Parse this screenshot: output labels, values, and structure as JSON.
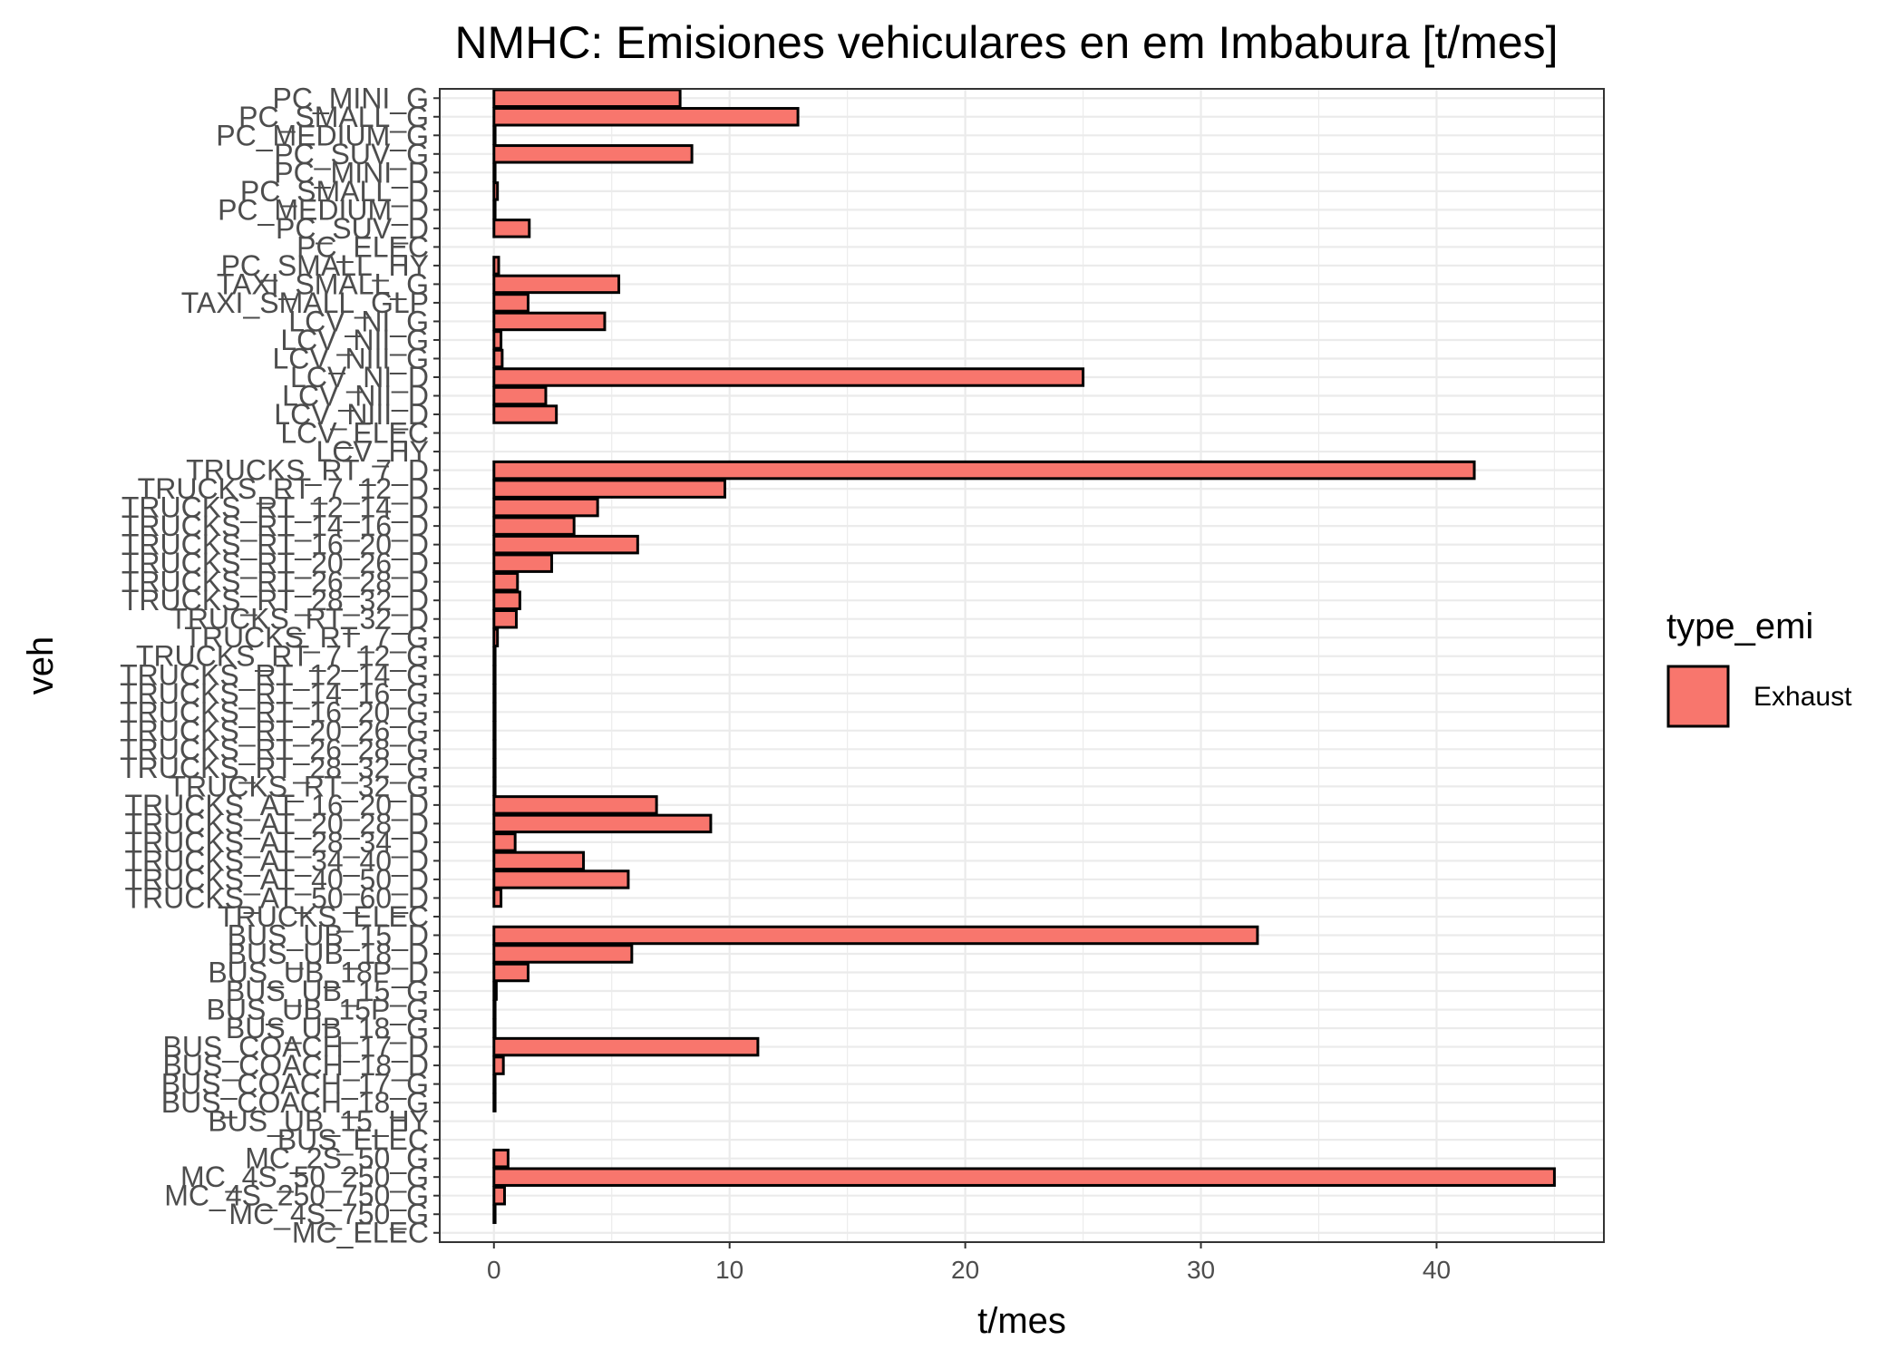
{
  "chart_data": {
    "type": "bar",
    "orientation": "horizontal",
    "title": "NMHC: Emisiones vehiculares en  em Imbabura [t/mes]",
    "xlabel": "t/mes",
    "ylabel": "veh",
    "xlim": [
      -2.3,
      47.1
    ],
    "xticks": [
      0,
      10,
      20,
      30,
      40
    ],
    "grid": true,
    "legend": {
      "title": "type_emi",
      "position": "right",
      "entries": [
        "Exhaust"
      ]
    },
    "categories": [
      "PC_MINI_G",
      "PC_SMALL_G",
      "PC_MEDIUM_G",
      "PC_SUV_G",
      "PC_MINI_D",
      "PC_SMALL_D",
      "PC_MEDIUM_D",
      "PC_SUV_D",
      "PC_ELEC",
      "PC_SMALL_HY",
      "TAXI_SMALL_G",
      "TAXI_SMALL_GLP",
      "LCV_NI_G",
      "LCV_NII_G",
      "LCV_NIII_G",
      "LCV_NI_D",
      "LCV_NII_D",
      "LCV_NIII_D",
      "LCV_ELEC",
      "LCV_HY",
      "TRUCKS_RT_7_D",
      "TRUCKS_RT_7_12_D",
      "TRUCKS_RT_12_14_D",
      "TRUCKS_RT_14_16_D",
      "TRUCKS_RT_16_20_D",
      "TRUCKS_RT_20_26_D",
      "TRUCKS_RT_26_28_D",
      "TRUCKS_RT_28_32_D",
      "TRUCKS_RT_32_D",
      "TRUCKS_RT_7_G",
      "TRUCKS_RT_7_12_G",
      "TRUCKS_RT_12_14_G",
      "TRUCKS_RT_14_16_G",
      "TRUCKS_RT_16_20_G",
      "TRUCKS_RT_20_26_G",
      "TRUCKS_RT_26_28_G",
      "TRUCKS_RT_28_32_G",
      "TRUCKS_RT_32_G",
      "TRUCKS_AT_16_20_D",
      "TRUCKS_AT_20_28_D",
      "TRUCKS_AT_28_34_D",
      "TRUCKS_AT_34_40_D",
      "TRUCKS_AT_40_50_D",
      "TRUCKS_AT_50_60_D",
      "TRUCKS_ELEC",
      "BUS_UB_15_D",
      "BUS_UB_18_D",
      "BUS_UB_18P_D",
      "BUS_UB_15_G",
      "BUS_UB_15P_G",
      "BUS_UB_18_G",
      "BUS_COACH_17_D",
      "BUS_COACH_18_D",
      "BUS_COACH_17_G",
      "BUS_COACH_18_G",
      "BUS_UB_15_HY",
      "BUS_ELEC",
      "MC_2S_50_G",
      "MC_4S_50_250_G",
      "MC_4S_250_750_G",
      "MC_4S_750_G",
      "MC_ELEC"
    ],
    "series": [
      {
        "name": "Exhaust",
        "color": "#F8766D",
        "values": [
          7.9,
          12.9,
          0.05,
          8.4,
          0.05,
          0.15,
          0.05,
          1.5,
          0,
          0.2,
          5.3,
          1.45,
          4.7,
          0.3,
          0.35,
          25.0,
          2.2,
          2.65,
          0,
          0,
          41.6,
          9.8,
          4.4,
          3.4,
          6.1,
          2.45,
          1.0,
          1.1,
          0.95,
          0.15,
          0.05,
          0.05,
          0.05,
          0.05,
          0.05,
          0.05,
          0.05,
          0.05,
          6.9,
          9.2,
          0.9,
          3.8,
          5.7,
          0.3,
          0,
          32.4,
          5.85,
          1.45,
          0.1,
          0.05,
          0.05,
          11.2,
          0.4,
          0.05,
          0.05,
          0,
          0,
          0.6,
          45.0,
          0.45,
          0.05,
          0
        ]
      }
    ]
  }
}
